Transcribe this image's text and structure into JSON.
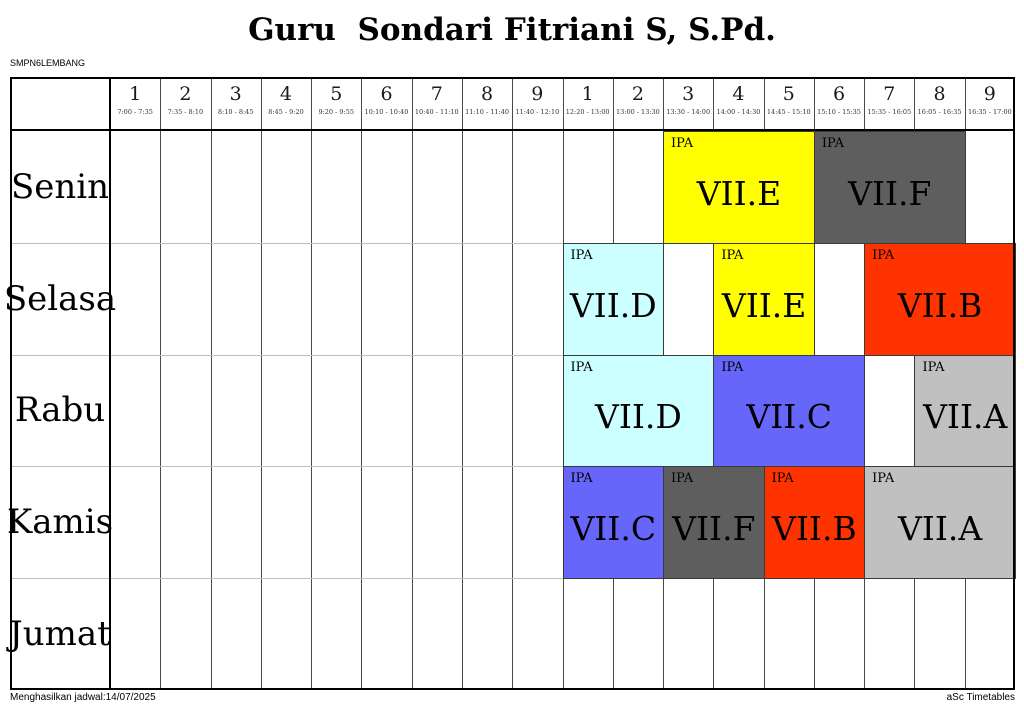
{
  "title": "Guru  Sondari Fitriani S, S.Pd.",
  "school": "SMPN6LEMBANG",
  "footer": {
    "left": "Menghasilkan jadwal:14/07/2025",
    "right": "aSc Timetables"
  },
  "periods": [
    {
      "num": "1",
      "time": "7:00 - 7:35"
    },
    {
      "num": "2",
      "time": "7:35 - 8:10"
    },
    {
      "num": "3",
      "time": "8:10 - 8:45"
    },
    {
      "num": "4",
      "time": "8:45 - 9:20"
    },
    {
      "num": "5",
      "time": "9:20 - 9:55"
    },
    {
      "num": "6",
      "time": "10:10 - 10:40"
    },
    {
      "num": "7",
      "time": "10:40 - 11:10"
    },
    {
      "num": "8",
      "time": "11:10 - 11:40"
    },
    {
      "num": "9",
      "time": "11:40 - 12:10"
    },
    {
      "num": "1",
      "time": "12:20 - 13:00"
    },
    {
      "num": "2",
      "time": "13:00 - 13:30"
    },
    {
      "num": "3",
      "time": "13:30 - 14:00"
    },
    {
      "num": "4",
      "time": "14:00 - 14:30"
    },
    {
      "num": "5",
      "time": "14:45 - 15:10"
    },
    {
      "num": "6",
      "time": "15:10 - 15:35"
    },
    {
      "num": "7",
      "time": "15:35 - 16:05"
    },
    {
      "num": "8",
      "time": "16:05 - 16:35"
    },
    {
      "num": "9",
      "time": "16:35 - 17:00"
    }
  ],
  "days": [
    "Senin",
    "Selasa",
    "Rabu",
    "Kamis",
    "Jumat"
  ],
  "lessons": [
    {
      "day": 0,
      "col": 12,
      "span": 3,
      "subject": "IPA",
      "class_name": "VII.E",
      "color": "#ffff00"
    },
    {
      "day": 0,
      "col": 15,
      "span": 3,
      "subject": "IPA",
      "class_name": "VII.F",
      "color": "#5e5e5e"
    },
    {
      "day": 1,
      "col": 10,
      "span": 2,
      "subject": "IPA",
      "class_name": "VII.D",
      "color": "#ccffff"
    },
    {
      "day": 1,
      "col": 13,
      "span": 2,
      "subject": "IPA",
      "class_name": "VII.E",
      "color": "#ffff00"
    },
    {
      "day": 1,
      "col": 16,
      "span": 3,
      "subject": "IPA",
      "class_name": "VII.B",
      "color": "#ff3300"
    },
    {
      "day": 2,
      "col": 10,
      "span": 3,
      "subject": "IPA",
      "class_name": "VII.D",
      "color": "#ccffff"
    },
    {
      "day": 2,
      "col": 13,
      "span": 3,
      "subject": "IPA",
      "class_name": "VII.C",
      "color": "#6666fa"
    },
    {
      "day": 2,
      "col": 17,
      "span": 2,
      "subject": "IPA",
      "class_name": "VII.A",
      "color": "#c0c0c0"
    },
    {
      "day": 3,
      "col": 10,
      "span": 2,
      "subject": "IPA",
      "class_name": "VII.C",
      "color": "#6666fa"
    },
    {
      "day": 3,
      "col": 12,
      "span": 2,
      "subject": "IPA",
      "class_name": "VII.F",
      "color": "#5e5e5e"
    },
    {
      "day": 3,
      "col": 14,
      "span": 2,
      "subject": "IPA",
      "class_name": "VII.B",
      "color": "#ff3300"
    },
    {
      "day": 3,
      "col": 16,
      "span": 3,
      "subject": "IPA",
      "class_name": "VII.A",
      "color": "#c0c0c0"
    }
  ],
  "colors": {
    "grid_vertical": "#4a4a4a",
    "grid_horizontal": "#bfbfbf",
    "border": "#000000",
    "cell_text": "#000000"
  }
}
